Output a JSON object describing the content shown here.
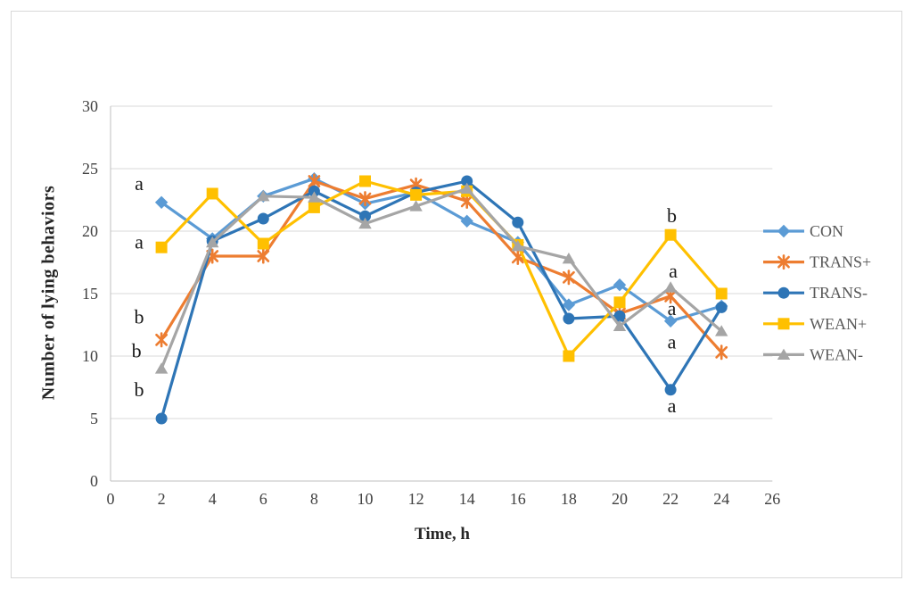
{
  "chart_data": {
    "type": "line",
    "title": "",
    "xlabel": "Time, h",
    "ylabel": "Number of lying behaviors",
    "xlim": [
      0,
      26
    ],
    "ylim": [
      0,
      30
    ],
    "x_ticks": [
      0,
      2,
      4,
      6,
      8,
      10,
      12,
      14,
      16,
      18,
      20,
      22,
      24,
      26
    ],
    "y_ticks": [
      0,
      5,
      10,
      15,
      20,
      25,
      30
    ],
    "grid": "horizontal",
    "legend_position": "right",
    "x": [
      2,
      4,
      6,
      8,
      10,
      12,
      14,
      16,
      18,
      20,
      22,
      24
    ],
    "series": [
      {
        "name": "CON",
        "marker": "diamond",
        "color": "#5B9BD5",
        "values": [
          22.3,
          19.4,
          22.8,
          24.2,
          22.2,
          23.1,
          20.8,
          19.1,
          14.1,
          15.7,
          12.8,
          14.0
        ]
      },
      {
        "name": "TRANS+",
        "marker": "asterisk",
        "color": "#ED7D31",
        "values": [
          11.3,
          18.0,
          18.0,
          24.0,
          22.6,
          23.7,
          22.4,
          17.9,
          16.3,
          13.4,
          14.8,
          10.3
        ]
      },
      {
        "name": "TRANS-",
        "marker": "circle",
        "color": "#2E75B6",
        "values": [
          5.0,
          19.2,
          21.0,
          23.2,
          21.2,
          23.1,
          24.0,
          20.7,
          13.0,
          13.2,
          7.3,
          13.9
        ]
      },
      {
        "name": "WEAN+",
        "marker": "square",
        "color": "#FFC000",
        "values": [
          18.7,
          23.0,
          19.0,
          21.9,
          24.0,
          22.9,
          23.2,
          18.9,
          10.0,
          14.3,
          19.7,
          15.0
        ]
      },
      {
        "name": "WEAN-",
        "marker": "triangle",
        "color": "#A5A5A5",
        "values": [
          9.0,
          19.1,
          22.8,
          22.7,
          20.6,
          22.0,
          23.4,
          18.8,
          17.8,
          12.4,
          15.5,
          12.0
        ]
      }
    ],
    "annotations": [
      {
        "text": "a",
        "x": 1.12,
        "y": 23.8
      },
      {
        "text": "a",
        "x": 1.12,
        "y": 19.1
      },
      {
        "text": "b",
        "x": 1.12,
        "y": 13.1
      },
      {
        "text": "b",
        "x": 1.02,
        "y": 10.4
      },
      {
        "text": "b",
        "x": 1.12,
        "y": 7.3
      },
      {
        "text": "b",
        "x": 22.05,
        "y": 21.2
      },
      {
        "text": "a",
        "x": 22.1,
        "y": 16.8
      },
      {
        "text": "a",
        "x": 22.05,
        "y": 13.8
      },
      {
        "text": "a",
        "x": 22.05,
        "y": 11.1
      },
      {
        "text": "a",
        "x": 22.05,
        "y": 6.0
      }
    ]
  },
  "style": {
    "grid_color": "#d9d9d9",
    "axis_line_color": "#bfbfbf",
    "tick_text_color": "#404040",
    "legend_text_color": "#595959",
    "annotation_text_color": "#1a1a1a",
    "frame_border_color": "#d8d8d8"
  }
}
